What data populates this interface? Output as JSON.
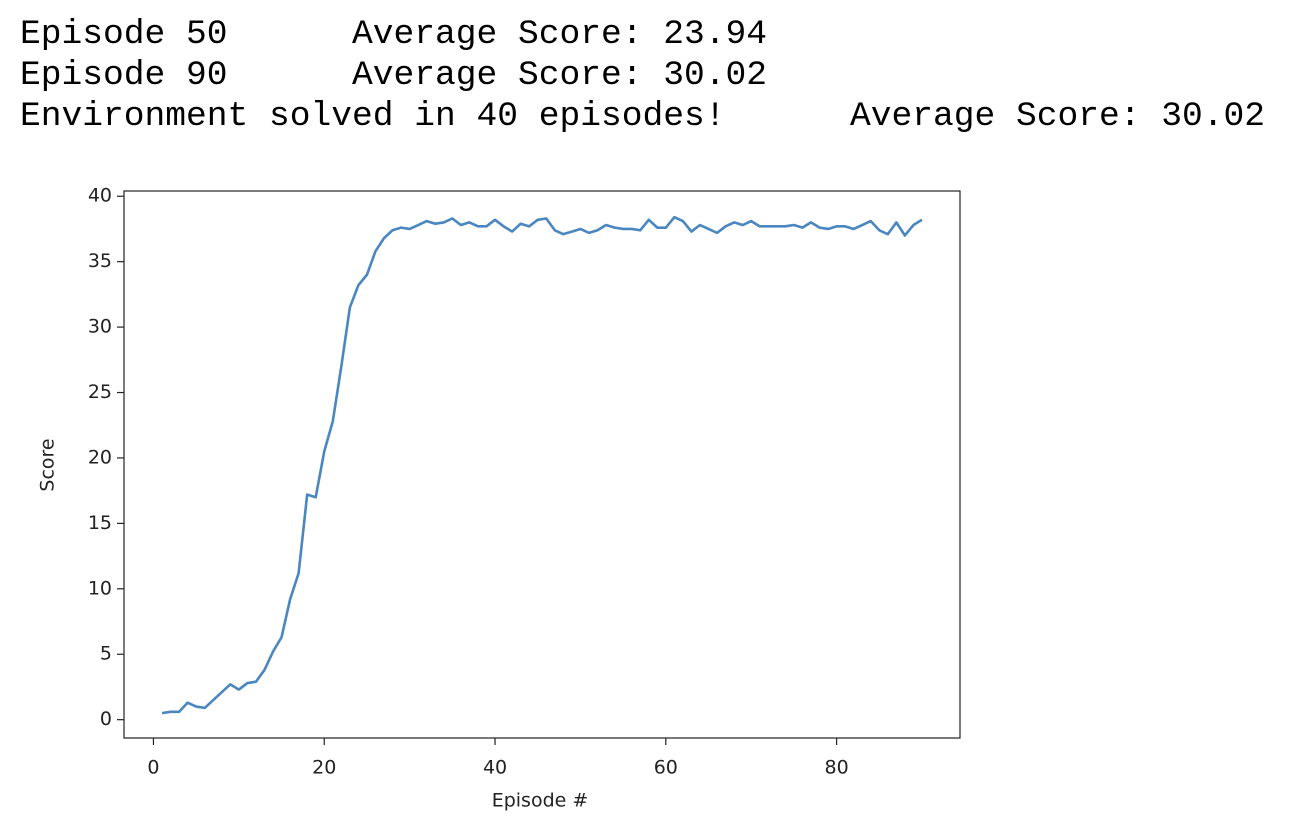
{
  "output_lines": [
    "Episode 50\tAverage Score: 23.94",
    "Episode 90\tAverage Score: 30.02",
    "Environment solved in 40 episodes!\tAverage Score: 30.02"
  ],
  "chart_data": {
    "type": "line",
    "xlabel": "Episode #",
    "ylabel": "Score",
    "color": "#4a86c0",
    "x": [
      1,
      2,
      3,
      4,
      5,
      6,
      7,
      8,
      9,
      10,
      11,
      12,
      13,
      14,
      15,
      16,
      17,
      18,
      19,
      20,
      21,
      22,
      23,
      24,
      25,
      26,
      27,
      28,
      29,
      30,
      31,
      32,
      33,
      34,
      35,
      36,
      37,
      38,
      39,
      40,
      41,
      42,
      43,
      44,
      45,
      46,
      47,
      48,
      49,
      50,
      51,
      52,
      53,
      54,
      55,
      56,
      57,
      58,
      59,
      60,
      61,
      62,
      63,
      64,
      65,
      66,
      67,
      68,
      69,
      70,
      71,
      72,
      73,
      74,
      75,
      76,
      77,
      78,
      79,
      80,
      81,
      82,
      83,
      84,
      85,
      86,
      87,
      88,
      89,
      90
    ],
    "values": [
      0.5,
      0.6,
      0.6,
      1.3,
      1.0,
      0.9,
      1.5,
      2.1,
      2.7,
      2.3,
      2.8,
      2.9,
      3.8,
      5.2,
      6.3,
      9.2,
      11.2,
      17.2,
      17.0,
      20.5,
      22.8,
      27.0,
      31.5,
      33.2,
      34.0,
      35.8,
      36.8,
      37.4,
      37.6,
      37.5,
      37.8,
      38.1,
      37.9,
      38.0,
      38.3,
      37.8,
      38.0,
      37.7,
      37.7,
      38.2,
      37.7,
      37.3,
      37.9,
      37.7,
      38.2,
      38.3,
      37.4,
      37.1,
      37.3,
      37.5,
      37.2,
      37.4,
      37.8,
      37.6,
      37.5,
      37.5,
      37.4,
      38.2,
      37.6,
      37.6,
      38.4,
      38.1,
      37.3,
      37.8,
      37.5,
      37.2,
      37.7,
      38.0,
      37.8,
      38.1,
      37.7,
      37.7,
      37.7,
      37.7,
      37.8,
      37.6,
      38.0,
      37.6,
      37.5,
      37.7,
      37.7,
      37.5,
      37.8,
      38.1,
      37.4,
      37.1,
      38.0,
      37.0,
      37.8,
      38.2
    ],
    "xlim": [
      -3.45,
      94.45
    ],
    "ylim": [
      -1.4,
      40.4
    ],
    "xticks": [
      0,
      20,
      40,
      60,
      80
    ],
    "yticks": [
      0,
      5,
      10,
      15,
      20,
      25,
      30,
      35,
      40
    ]
  }
}
